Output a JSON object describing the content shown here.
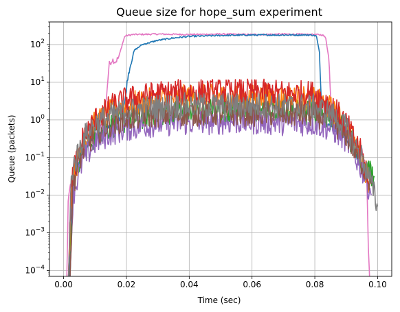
{
  "chart_data": {
    "type": "line",
    "title": "Queue size for hope_sum experiment",
    "xlabel": "Time (sec)",
    "ylabel": "Queue (packets)",
    "xlim": [
      -0.0045,
      0.1045
    ],
    "ylim": [
      7e-05,
      400
    ],
    "yscale": "log",
    "grid": true,
    "x_ticks": [
      0.0,
      0.02,
      0.04,
      0.06,
      0.08,
      0.1
    ],
    "x_tick_labels": [
      "0.00",
      "0.02",
      "0.04",
      "0.06",
      "0.08",
      "0.10"
    ],
    "y_ticks": [
      0.0001,
      0.001,
      0.01,
      0.1,
      1,
      10,
      100
    ],
    "y_tick_labels": [
      {
        "base": "10",
        "exp": "−4"
      },
      {
        "base": "10",
        "exp": "−3"
      },
      {
        "base": "10",
        "exp": "−2"
      },
      {
        "base": "10",
        "exp": "−1"
      },
      {
        "base": "10",
        "exp": "0"
      },
      {
        "base": "10",
        "exp": "1"
      },
      {
        "base": "10",
        "exp": "2"
      }
    ],
    "series": [
      {
        "color": "#e377c2",
        "points": [
          [
            0.001,
            5e-05
          ],
          [
            0.0015,
            0.01
          ],
          [
            0.003,
            0.03
          ],
          [
            0.005,
            0.1
          ],
          [
            0.008,
            0.25
          ],
          [
            0.011,
            0.5
          ],
          [
            0.0125,
            0.8
          ],
          [
            0.0135,
            3
          ],
          [
            0.0145,
            30
          ],
          [
            0.0155,
            40
          ],
          [
            0.0165,
            35
          ],
          [
            0.0175,
            45
          ],
          [
            0.0185,
            90
          ],
          [
            0.0195,
            170
          ],
          [
            0.022,
            185
          ],
          [
            0.03,
            190
          ],
          [
            0.04,
            185
          ],
          [
            0.05,
            190
          ],
          [
            0.06,
            185
          ],
          [
            0.07,
            190
          ],
          [
            0.08,
            185
          ],
          [
            0.0825,
            180
          ],
          [
            0.0835,
            150
          ],
          [
            0.0845,
            40
          ],
          [
            0.085,
            5
          ],
          [
            0.0855,
            1
          ],
          [
            0.087,
            0.5
          ],
          [
            0.09,
            0.35
          ],
          [
            0.093,
            0.25
          ],
          [
            0.095,
            0.15
          ],
          [
            0.0965,
            0.05
          ],
          [
            0.097,
            0.0005
          ],
          [
            0.0975,
            5e-05
          ]
        ]
      },
      {
        "color": "#1f77b4",
        "points": [
          [
            0.0018,
            5e-05
          ],
          [
            0.0025,
            0.01
          ],
          [
            0.004,
            0.04
          ],
          [
            0.006,
            0.15
          ],
          [
            0.009,
            0.3
          ],
          [
            0.012,
            0.5
          ],
          [
            0.016,
            0.8
          ],
          [
            0.0185,
            1.2
          ],
          [
            0.0195,
            3
          ],
          [
            0.0205,
            15
          ],
          [
            0.0215,
            35
          ],
          [
            0.0225,
            70
          ],
          [
            0.025,
            100
          ],
          [
            0.03,
            130
          ],
          [
            0.035,
            150
          ],
          [
            0.04,
            165
          ],
          [
            0.05,
            175
          ],
          [
            0.06,
            180
          ],
          [
            0.07,
            180
          ],
          [
            0.079,
            180
          ],
          [
            0.0805,
            170
          ],
          [
            0.0815,
            60
          ],
          [
            0.082,
            4
          ],
          [
            0.0825,
            1
          ],
          [
            0.086,
            0.6
          ],
          [
            0.09,
            0.3
          ],
          [
            0.093,
            0.12
          ],
          [
            0.095,
            0.05
          ]
        ]
      },
      {
        "color": "#2ca02c",
        "points": [
          [
            0.002,
            5e-05
          ],
          [
            0.003,
            0.02
          ],
          [
            0.006,
            0.15
          ],
          [
            0.01,
            0.4
          ],
          [
            0.015,
            0.7
          ],
          [
            0.02,
            1.0
          ],
          [
            0.03,
            1.5
          ],
          [
            0.04,
            1.7
          ],
          [
            0.05,
            1.8
          ],
          [
            0.06,
            1.7
          ],
          [
            0.07,
            1.6
          ],
          [
            0.08,
            1.6
          ],
          [
            0.085,
            1.2
          ],
          [
            0.09,
            0.5
          ],
          [
            0.095,
            0.08
          ],
          [
            0.099,
            0.03
          ]
        ]
      },
      {
        "color": "#ff7f0e",
        "points": [
          [
            0.0015,
            5e-05
          ],
          [
            0.0025,
            0.02
          ],
          [
            0.006,
            0.25
          ],
          [
            0.01,
            0.8
          ],
          [
            0.015,
            1.6
          ],
          [
            0.02,
            2.5
          ],
          [
            0.03,
            3.5
          ],
          [
            0.04,
            4
          ],
          [
            0.05,
            4
          ],
          [
            0.06,
            4
          ],
          [
            0.07,
            3.8
          ],
          [
            0.08,
            3.5
          ],
          [
            0.085,
            2
          ],
          [
            0.09,
            0.7
          ],
          [
            0.095,
            0.1
          ],
          [
            0.0975,
            0.02
          ]
        ]
      },
      {
        "color": "#9467bd",
        "points": [
          [
            0.002,
            5e-05
          ],
          [
            0.003,
            0.01
          ],
          [
            0.006,
            0.08
          ],
          [
            0.01,
            0.25
          ],
          [
            0.015,
            0.45
          ],
          [
            0.02,
            0.6
          ],
          [
            0.03,
            0.8
          ],
          [
            0.04,
            0.85
          ],
          [
            0.05,
            0.9
          ],
          [
            0.06,
            0.9
          ],
          [
            0.07,
            0.85
          ],
          [
            0.08,
            0.8
          ],
          [
            0.085,
            0.6
          ],
          [
            0.09,
            0.3
          ],
          [
            0.095,
            0.05
          ],
          [
            0.098,
            0.01
          ]
        ]
      },
      {
        "color": "#8c564b",
        "points": [
          [
            0.002,
            5e-05
          ],
          [
            0.003,
            0.02
          ],
          [
            0.006,
            0.15
          ],
          [
            0.01,
            0.45
          ],
          [
            0.015,
            0.8
          ],
          [
            0.02,
            1.1
          ],
          [
            0.03,
            1.4
          ],
          [
            0.04,
            1.5
          ],
          [
            0.05,
            1.5
          ],
          [
            0.06,
            1.5
          ],
          [
            0.07,
            1.45
          ],
          [
            0.08,
            1.4
          ],
          [
            0.085,
            1.0
          ],
          [
            0.09,
            0.4
          ],
          [
            0.095,
            0.07
          ],
          [
            0.098,
            0.02
          ]
        ]
      },
      {
        "color": "#d62728",
        "points": [
          [
            0.0015,
            5e-05
          ],
          [
            0.0025,
            0.03
          ],
          [
            0.006,
            0.3
          ],
          [
            0.01,
            1.0
          ],
          [
            0.015,
            2.2
          ],
          [
            0.02,
            3.5
          ],
          [
            0.03,
            5
          ],
          [
            0.04,
            5.5
          ],
          [
            0.05,
            5.5
          ],
          [
            0.06,
            5.5
          ],
          [
            0.07,
            5.2
          ],
          [
            0.08,
            5
          ],
          [
            0.085,
            2.5
          ],
          [
            0.09,
            0.8
          ],
          [
            0.095,
            0.12
          ],
          [
            0.097,
            0.02
          ]
        ]
      },
      {
        "color": "#7f7f7f",
        "points": [
          [
            0.0015,
            5e-05
          ],
          [
            0.0025,
            0.04
          ],
          [
            0.006,
            0.3
          ],
          [
            0.01,
            0.8
          ],
          [
            0.015,
            1.3
          ],
          [
            0.02,
            1.7
          ],
          [
            0.03,
            2.2
          ],
          [
            0.04,
            2.4
          ],
          [
            0.05,
            2.4
          ],
          [
            0.06,
            2.4
          ],
          [
            0.07,
            2.3
          ],
          [
            0.08,
            2.2
          ],
          [
            0.085,
            1.5
          ],
          [
            0.09,
            0.6
          ],
          [
            0.095,
            0.1
          ],
          [
            0.098,
            0.02
          ],
          [
            0.1,
            0.005
          ]
        ]
      }
    ]
  }
}
